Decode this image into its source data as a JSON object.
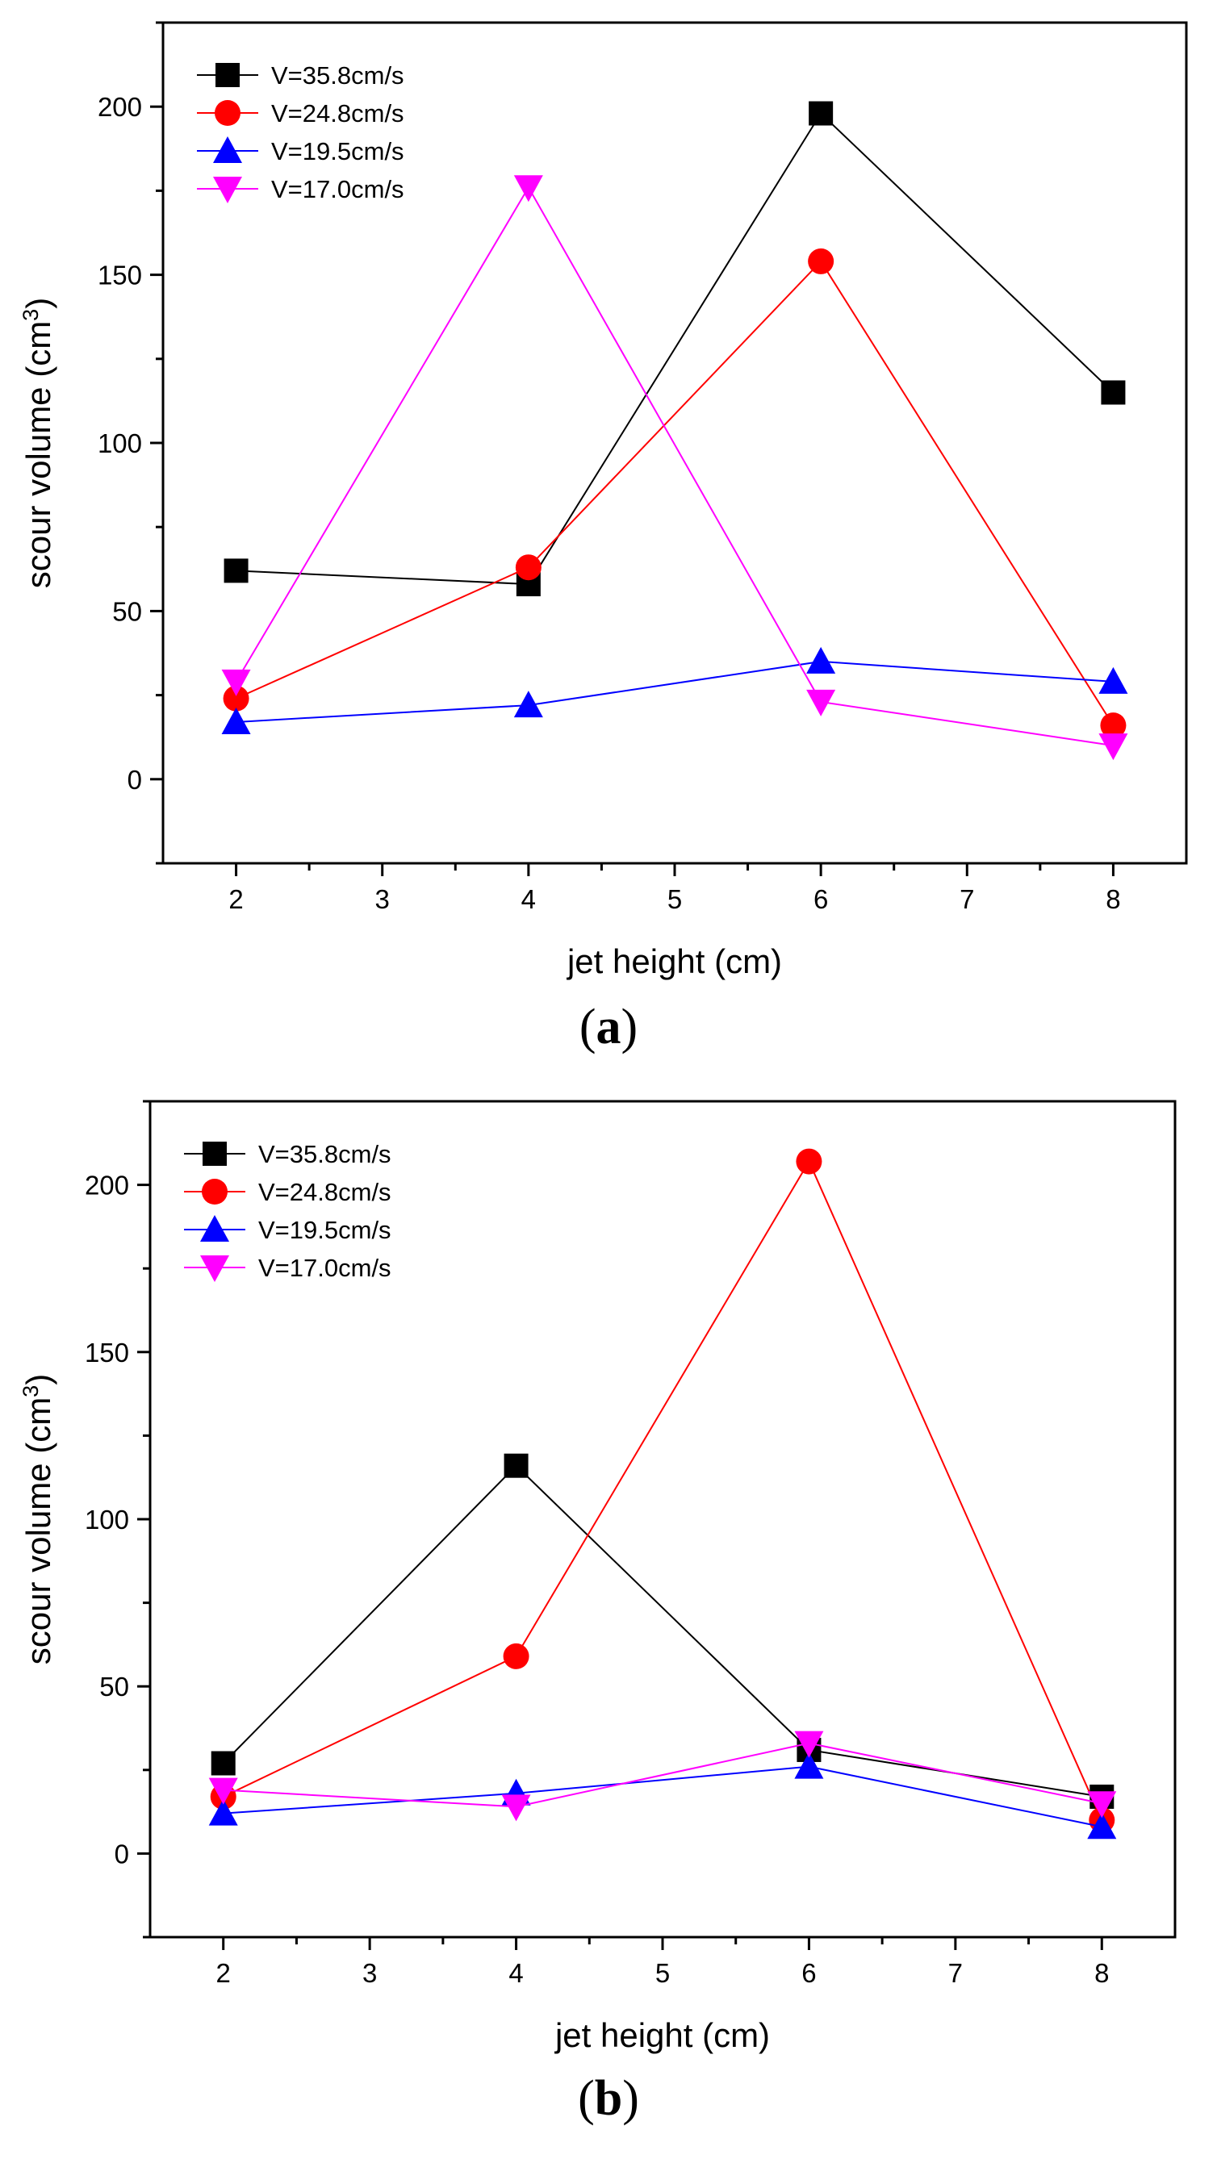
{
  "chart_data": [
    {
      "type": "line",
      "panel": "(a)",
      "panel_letter": "a",
      "xlabel": "jet height (cm)",
      "ylabel_main": "scour volume (cm",
      "ylabel_sup": "3",
      "ylabel_end": ")",
      "xlim": [
        1.5,
        8.5
      ],
      "ylim": [
        -25,
        225
      ],
      "xticks": [
        2,
        3,
        4,
        5,
        6,
        7,
        8
      ],
      "yticks": [
        0,
        50,
        100,
        150,
        200
      ],
      "x": [
        2,
        4,
        6,
        8
      ],
      "legend_position": "top-left",
      "series": [
        {
          "name": "V=35.8cm/s",
          "color": "#000000",
          "marker": "square",
          "values": [
            62,
            58,
            198,
            115
          ]
        },
        {
          "name": "V=24.8cm/s",
          "color": "#ff0000",
          "marker": "circle",
          "values": [
            24,
            63,
            154,
            16
          ]
        },
        {
          "name": "V=19.5cm/s",
          "color": "#0000ff",
          "marker": "triangle-up",
          "values": [
            17,
            22,
            35,
            29
          ]
        },
        {
          "name": "V=17.0cm/s",
          "color": "#ff00ff",
          "marker": "triangle-down",
          "values": [
            29,
            176,
            23,
            10
          ]
        }
      ]
    },
    {
      "type": "line",
      "panel": "(b)",
      "panel_letter": "b",
      "xlabel": "jet height (cm)",
      "ylabel_main": "scour volume (cm",
      "ylabel_sup": "3",
      "ylabel_end": ")",
      "xlim": [
        1.5,
        8.5
      ],
      "ylim": [
        -25,
        225
      ],
      "xticks": [
        2,
        3,
        4,
        5,
        6,
        7,
        8
      ],
      "yticks": [
        0,
        50,
        100,
        150,
        200
      ],
      "x": [
        2,
        4,
        6,
        8
      ],
      "legend_position": "top-left",
      "series": [
        {
          "name": "V=35.8cm/s",
          "color": "#000000",
          "marker": "square",
          "values": [
            27,
            116,
            31,
            17
          ]
        },
        {
          "name": "V=24.8cm/s",
          "color": "#ff0000",
          "marker": "circle",
          "values": [
            17,
            59,
            207,
            10
          ]
        },
        {
          "name": "V=19.5cm/s",
          "color": "#0000ff",
          "marker": "triangle-up",
          "values": [
            12,
            18,
            26,
            8
          ]
        },
        {
          "name": "V=17.0cm/s",
          "color": "#ff00ff",
          "marker": "triangle-down",
          "values": [
            19,
            14,
            33,
            15
          ]
        }
      ]
    }
  ]
}
